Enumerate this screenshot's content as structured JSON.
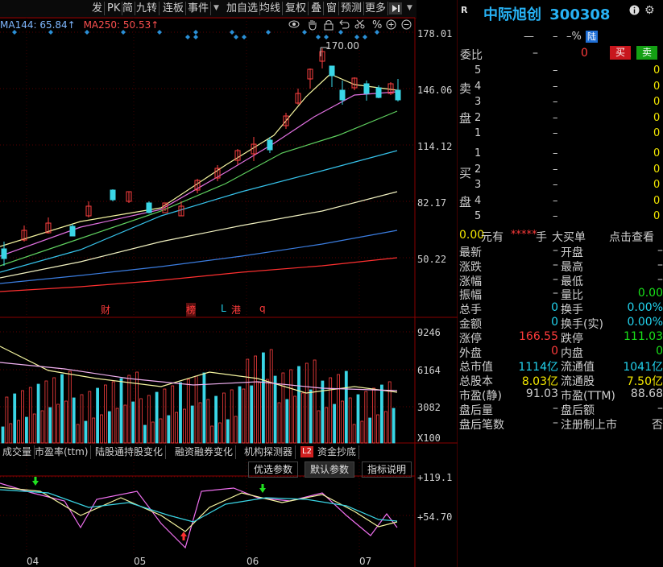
{
  "toolbar": {
    "buttons": [
      "发",
      "PK",
      "简",
      "九转",
      "连板",
      "事件",
      "加自选",
      "均线",
      "复权",
      "叠",
      "窗",
      "预测",
      "更多"
    ],
    "event_arrow": "▼",
    "nav_icon": "right-arrow-icon",
    "menu_icon": "chevron-down-icon"
  },
  "indicators": {
    "ma144": "MA144: 65.84↑",
    "ma250": "MA250: 50.53↑"
  },
  "chart_icons": [
    "eye-icon",
    "hand-icon",
    "lock-icon",
    "undo-icon",
    "scissors-icon",
    "plus-circle-icon",
    "settings-icon"
  ],
  "price_axis": [
    "178.01",
    "146.06",
    "114.12",
    "82.17",
    "50.22"
  ],
  "volume_axis": [
    "9246",
    "6164",
    "3082",
    "X100"
  ],
  "osc_axis": [
    "+119.1",
    "+54.70"
  ],
  "month_labels": [
    "04",
    "05",
    "06",
    "07"
  ],
  "high_marker": "170.00",
  "event_markers": [
    {
      "text": "财",
      "color": "#ff3b3b"
    },
    {
      "text": "榜",
      "color": "#ff3b3b"
    },
    {
      "text": "L",
      "color": "#22d3ee"
    },
    {
      "text": "港",
      "color": "#ff3b3b"
    },
    {
      "text": "q",
      "color": "#ff3b3b"
    }
  ],
  "bottom_tabs": [
    "成交量",
    "市盈率(ttm)",
    "陆股通持股变化",
    "融资融券变化",
    "机构探测器",
    "资金抄底"
  ],
  "l2_badge": "L2",
  "param_tabs": [
    "优选参数",
    "默认参数",
    "指标说明"
  ],
  "stock": {
    "badge": "R",
    "name": "中际旭创",
    "code": "300308",
    "change": "—",
    "change_dash": "–",
    "change_pct": "–%",
    "exchange_badge": "陆",
    "info_icon": "info-icon",
    "gear_icon": "gear-icon"
  },
  "order_book": {
    "ratio_label": "委比",
    "ratio_value": "–",
    "ratio_diff": "0",
    "buy_btn": "买",
    "sell_btn": "卖",
    "sell_label": [
      "卖",
      "盘"
    ],
    "buy_label": [
      "买",
      "盘"
    ],
    "sell_levels": [
      {
        "level": "5",
        "price": "–",
        "vol": "0"
      },
      {
        "level": "4",
        "price": "–",
        "vol": "0"
      },
      {
        "level": "3",
        "price": "–",
        "vol": "0"
      },
      {
        "level": "2",
        "price": "–",
        "vol": "0"
      },
      {
        "level": "1",
        "price": "–",
        "vol": "0"
      }
    ],
    "buy_levels": [
      {
        "level": "1",
        "price": "–",
        "vol": "0"
      },
      {
        "level": "2",
        "price": "–",
        "vol": "0"
      },
      {
        "level": "3",
        "price": "–",
        "vol": "0"
      },
      {
        "level": "4",
        "price": "–",
        "vol": "0"
      },
      {
        "level": "5",
        "price": "–",
        "vol": "0"
      }
    ]
  },
  "bigbuy": {
    "amount": "0.00",
    "unit": "元有",
    "stars": "*****",
    "hand": "手",
    "label": "大买单",
    "link": "点击查看"
  },
  "quote_rows": [
    {
      "l1": "最新",
      "v1": "–",
      "l2": "开盘",
      "v2": "–",
      "c1": "val",
      "c2": "val"
    },
    {
      "l1": "涨跌",
      "v1": "–",
      "l2": "最高",
      "v2": "–",
      "c1": "val",
      "c2": "val"
    },
    {
      "l1": "涨幅",
      "v1": "–",
      "l2": "最低",
      "v2": "–",
      "c1": "val",
      "c2": "val"
    },
    {
      "l1": "振幅",
      "v1": "–",
      "l2": "量比",
      "v2": "0.00",
      "c1": "val",
      "c2": "green"
    },
    {
      "l1": "总手",
      "v1": "0",
      "l2": "换手",
      "v2": "0.00%",
      "c1": "cyan",
      "c2": "cyan"
    },
    {
      "l1": "金额",
      "v1": "0",
      "l2": "换手(实)",
      "v2": "0.00%",
      "c1": "cyan",
      "c2": "cyan"
    },
    {
      "l1": "涨停",
      "v1": "166.55",
      "l2": "跌停",
      "v2": "111.03",
      "c1": "red",
      "c2": "green"
    },
    {
      "l1": "外盘",
      "v1": "0",
      "l2": "内盘",
      "v2": "0",
      "c1": "red",
      "c2": "green"
    },
    {
      "l1": "总市值",
      "v1": "1114亿",
      "l2": "流通值",
      "v2": "1041亿",
      "c1": "cyan",
      "c2": "cyan"
    },
    {
      "l1": "总股本",
      "v1": "8.03亿",
      "l2": "流通股",
      "v2": "7.50亿",
      "c1": "yellow",
      "c2": "yellow"
    },
    {
      "l1": "市盈(静)",
      "v1": "91.03",
      "l2": "市盈(TTM)",
      "v2": "88.68",
      "c1": "val",
      "c2": "val"
    },
    {
      "l1": "盘后量",
      "v1": "–",
      "l2": "盘后额",
      "v2": "–",
      "c1": "val",
      "c2": "val"
    },
    {
      "l1": "盘后笔数",
      "v1": "–",
      "l2": "注册制上市",
      "v2": "否",
      "c1": "val",
      "c2": "val"
    }
  ]
}
